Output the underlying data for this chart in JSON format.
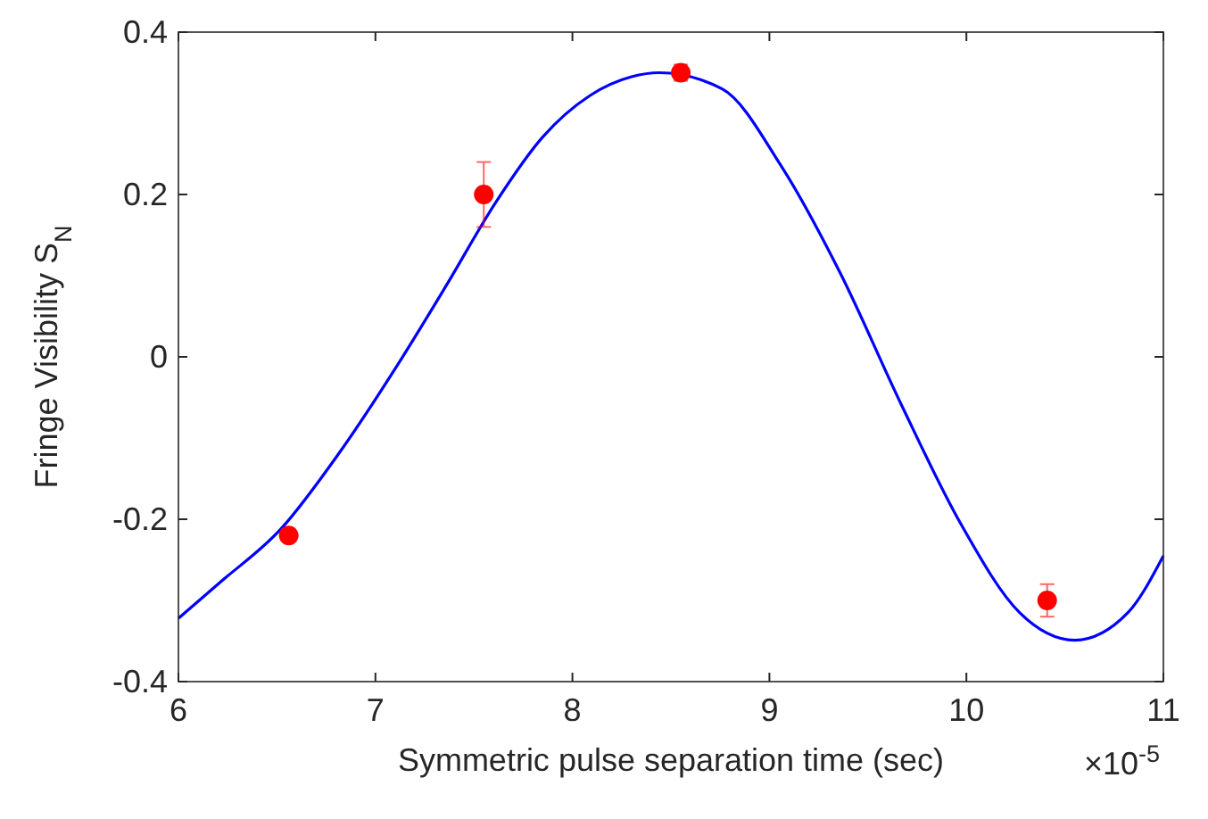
{
  "chart_data": {
    "type": "scatter",
    "xlabel": "Symmetric pulse separation time (sec)",
    "ylabel": "Fringe Visibility S$_{N}$",
    "annotations": [
      "×10$^{-5}$"
    ],
    "xlim": [
      6,
      11
    ],
    "ylim": [
      -0.4,
      0.4
    ],
    "xticks": [
      6,
      7,
      8,
      9,
      10,
      11
    ],
    "yticks": [
      {
        "value": -0.4,
        "label": "-0.4"
      },
      {
        "value": -0.2,
        "label": "-0.2"
      },
      0,
      0.2,
      0.4
    ],
    "grid": false,
    "series": [
      {
        "type": "line",
        "color": "#0000ff",
        "marker": "none",
        "line_style": "solid",
        "x": [
          6,
          6.21,
          6.52,
          6.82,
          7.12,
          7.36,
          7.61,
          7.85,
          8.09,
          8.3,
          8.44,
          8.76,
          9.06,
          9.36,
          9.67,
          9.97,
          10.27,
          10.55,
          10.82,
          11
        ],
        "values": [
          -0.322,
          -0.278,
          -0.212,
          -0.117,
          -0.007,
          0.088,
          0.19,
          0.271,
          0.322,
          0.345,
          0.35,
          0.33,
          0.235,
          0.103,
          -0.059,
          -0.205,
          -0.315,
          -0.349,
          -0.315,
          -0.245
        ]
      },
      {
        "type": "scatter",
        "color": "#ff0000",
        "marker": "circle",
        "x": [
          6.56,
          7.55,
          8.55,
          10.41
        ],
        "values": [
          -0.22,
          0.2,
          0.35,
          -0.3
        ],
        "errors": [
          null,
          0.04,
          0.01,
          0.02
        ]
      }
    ]
  }
}
